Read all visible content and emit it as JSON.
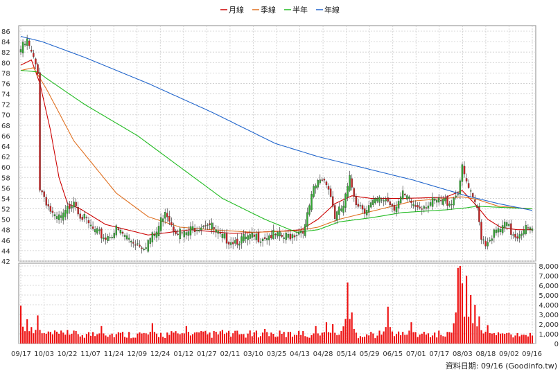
{
  "chart_data": [
    {
      "type": "candlestick",
      "legend_position": "top-center",
      "legend": [
        {
          "label": "月線",
          "color": "#cc0000"
        },
        {
          "label": "季線",
          "color": "#e07020"
        },
        {
          "label": "半年",
          "color": "#22bb22"
        },
        {
          "label": "年線",
          "color": "#2266cc"
        }
      ],
      "y_axis": {
        "side": "left",
        "min": 42,
        "max": 86,
        "step": 2,
        "ticks": [
          "42",
          "44",
          "46",
          "48",
          "50",
          "52",
          "54",
          "56",
          "58",
          "60",
          "62",
          "64",
          "66",
          "68",
          "70",
          "72",
          "74",
          "76",
          "78",
          "80",
          "82",
          "84",
          "86"
        ]
      },
      "x_ticks": [
        "09/17",
        "10/03",
        "10/22",
        "11/07",
        "11/24",
        "12/09",
        "12/24",
        "01/12",
        "01/27",
        "02/11",
        "03/10",
        "03/25",
        "04/13",
        "04/28",
        "05/14",
        "05/29",
        "06/15",
        "07/01",
        "07/17",
        "08/03",
        "08/18",
        "09/02",
        "09/16"
      ],
      "grid": true,
      "up_color": "#33aa33",
      "down_color": "#cc2222",
      "close_keypoints": [
        [
          0,
          83
        ],
        [
          3,
          84.5
        ],
        [
          6,
          81
        ],
        [
          8,
          79
        ],
        [
          9,
          56.5
        ],
        [
          11,
          55
        ],
        [
          13,
          53
        ],
        [
          16,
          50.5
        ],
        [
          20,
          51
        ],
        [
          25,
          54.5
        ],
        [
          28,
          51.5
        ],
        [
          35,
          48
        ],
        [
          40,
          47
        ],
        [
          45,
          48.5
        ],
        [
          52,
          46.5
        ],
        [
          58,
          45.5
        ],
        [
          64,
          48
        ],
        [
          68,
          52.5
        ],
        [
          72,
          49
        ],
        [
          77,
          47.5
        ],
        [
          82,
          49
        ],
        [
          88,
          50
        ],
        [
          94,
          47
        ],
        [
          100,
          46.5
        ],
        [
          110,
          47
        ],
        [
          118,
          47.5
        ],
        [
          124,
          47
        ],
        [
          130,
          48
        ],
        [
          134,
          49
        ],
        [
          136,
          53
        ],
        [
          138,
          56
        ],
        [
          141,
          58.3
        ],
        [
          144,
          58
        ],
        [
          146,
          55
        ],
        [
          148,
          51
        ],
        [
          152,
          53
        ],
        [
          155,
          58
        ],
        [
          158,
          54
        ],
        [
          162,
          52.5
        ],
        [
          168,
          54
        ],
        [
          172,
          54.5
        ],
        [
          176,
          53
        ],
        [
          180,
          55
        ],
        [
          186,
          53
        ],
        [
          195,
          53.8
        ],
        [
          203,
          54
        ],
        [
          206,
          56
        ],
        [
          208,
          60
        ],
        [
          210,
          57.5
        ],
        [
          213,
          54
        ],
        [
          215,
          52.5
        ],
        [
          217,
          47.5
        ],
        [
          219,
          46
        ],
        [
          222,
          47.5
        ],
        [
          226,
          48.5
        ],
        [
          229,
          49.5
        ],
        [
          231,
          48
        ],
        [
          234,
          47.5
        ],
        [
          237,
          49
        ],
        [
          241,
          48
        ]
      ],
      "series": [
        {
          "name": "月線",
          "keypoints": [
            [
              0,
              79.5
            ],
            [
              5,
              80.5
            ],
            [
              9,
              76
            ],
            [
              14,
              67
            ],
            [
              18,
              58
            ],
            [
              22,
              53
            ],
            [
              28,
              52
            ],
            [
              40,
              49
            ],
            [
              60,
              47
            ],
            [
              80,
              48
            ],
            [
              100,
              47.3
            ],
            [
              125,
              47.8
            ],
            [
              132,
              48
            ],
            [
              140,
              50
            ],
            [
              148,
              53
            ],
            [
              156,
              54.5
            ],
            [
              165,
              54
            ],
            [
              180,
              54
            ],
            [
              200,
              54.2
            ],
            [
              208,
              55.5
            ],
            [
              215,
              52.5
            ],
            [
              220,
              50
            ],
            [
              226,
              48.5
            ],
            [
              234,
              48
            ],
            [
              241,
              48
            ]
          ]
        },
        {
          "name": "季線",
          "keypoints": [
            [
              0,
              78.5
            ],
            [
              6,
              79
            ],
            [
              12,
              75
            ],
            [
              25,
              65
            ],
            [
              45,
              55
            ],
            [
              60,
              50.5
            ],
            [
              75,
              48.5
            ],
            [
              90,
              48
            ],
            [
              110,
              47.5
            ],
            [
              130,
              47.8
            ],
            [
              140,
              48.5
            ],
            [
              150,
              50
            ],
            [
              165,
              51.5
            ],
            [
              185,
              53.5
            ],
            [
              200,
              54
            ],
            [
              208,
              54.3
            ],
            [
              215,
              53.8
            ],
            [
              225,
              52.5
            ],
            [
              241,
              52
            ]
          ]
        },
        {
          "name": "半年",
          "keypoints": [
            [
              0,
              78.5
            ],
            [
              8,
              78.2
            ],
            [
              12,
              77
            ],
            [
              30,
              72
            ],
            [
              55,
              66
            ],
            [
              75,
              60
            ],
            [
              95,
              54
            ],
            [
              115,
              50
            ],
            [
              130,
              47.5
            ],
            [
              140,
              48
            ],
            [
              150,
              49.5
            ],
            [
              165,
              50.3
            ],
            [
              180,
              51.3
            ],
            [
              200,
              51.8
            ],
            [
              210,
              52.2
            ],
            [
              215,
              52.5
            ],
            [
              241,
              52
            ]
          ]
        },
        {
          "name": "年線",
          "keypoints": [
            [
              0,
              85
            ],
            [
              10,
              84
            ],
            [
              30,
              81
            ],
            [
              60,
              76
            ],
            [
              90,
              70.5
            ],
            [
              120,
              64.5
            ],
            [
              140,
              62
            ],
            [
              165,
              59.5
            ],
            [
              185,
              57.5
            ],
            [
              210,
              54.5
            ],
            [
              225,
              53
            ],
            [
              241,
              51.7
            ]
          ]
        }
      ]
    },
    {
      "type": "bar",
      "y_axis": {
        "side": "right",
        "min": 0,
        "max": 8000,
        "ticks": [
          "0",
          "1,000",
          "2,000",
          "3,000",
          "4,000",
          "5,000",
          "6,000",
          "7,000",
          "8,000"
        ]
      },
      "bar_color": "#ee1111",
      "base_volume": 900,
      "volume_peaks": [
        [
          0,
          3900
        ],
        [
          3,
          2500
        ],
        [
          5,
          1700
        ],
        [
          8,
          2900
        ],
        [
          14,
          1200
        ],
        [
          22,
          1400
        ],
        [
          38,
          1800
        ],
        [
          62,
          2100
        ],
        [
          78,
          1800
        ],
        [
          95,
          1400
        ],
        [
          115,
          1500
        ],
        [
          131,
          1300
        ],
        [
          139,
          1800
        ],
        [
          144,
          2200
        ],
        [
          147,
          2000
        ],
        [
          154,
          6300
        ],
        [
          156,
          3200
        ],
        [
          173,
          3800
        ],
        [
          184,
          2200
        ],
        [
          205,
          3200
        ],
        [
          206,
          7800
        ],
        [
          207,
          8000
        ],
        [
          208,
          6200
        ],
        [
          210,
          7000
        ],
        [
          212,
          5000
        ],
        [
          214,
          4000
        ],
        [
          216,
          2800
        ],
        [
          220,
          1900
        ],
        [
          228,
          1000
        ],
        [
          236,
          900
        ]
      ]
    }
  ],
  "footer": {
    "source_text": "資料日期: 09/16 (Goodinfo.tw)"
  }
}
